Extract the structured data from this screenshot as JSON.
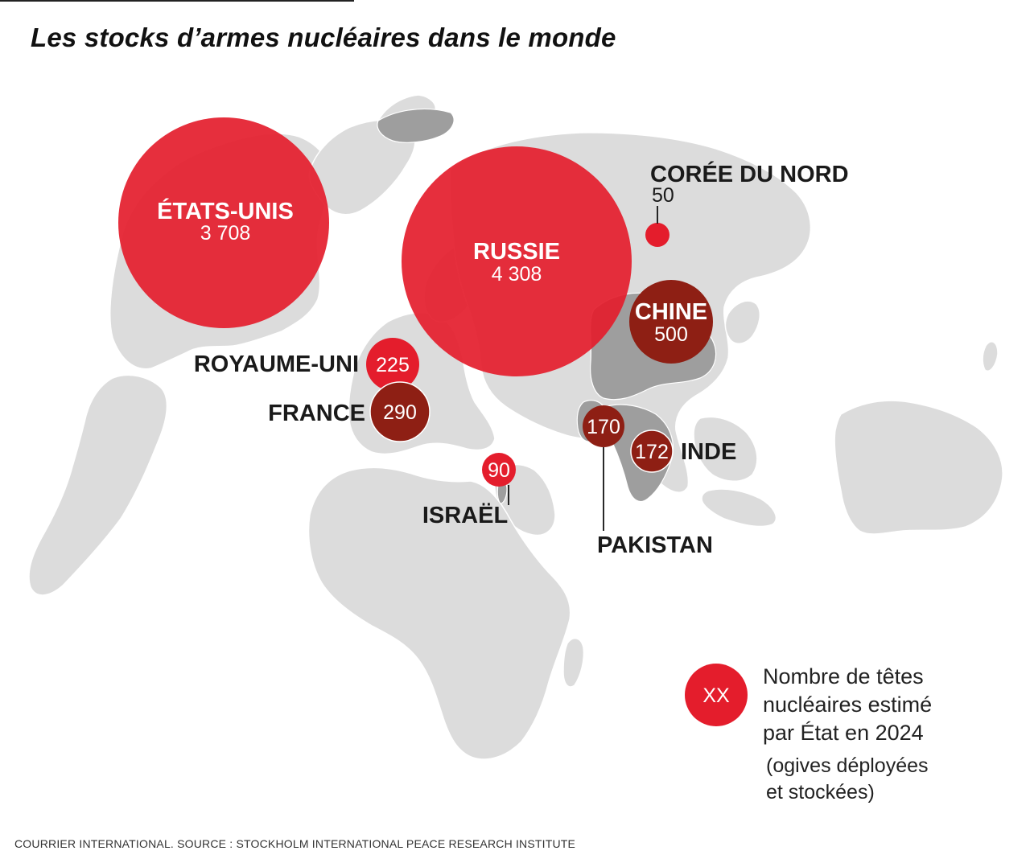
{
  "title": "Les stocks d’armes nucléaires dans le monde",
  "colors": {
    "land": "#dcdcdc",
    "nuclear_land": "#9e9e9e",
    "bubble": "#e41d2c",
    "bubble_dark": "#8e1f14",
    "border": "#ffffff"
  },
  "countries": [
    {
      "id": "etats-unis",
      "name": "ÉTATS-UNIS",
      "value_label": "3 708",
      "value": 3708
    },
    {
      "id": "russie",
      "name": "RUSSIE",
      "value_label": "4 308",
      "value": 4308
    },
    {
      "id": "coree-du-nord",
      "name": "CORÉE DU NORD",
      "value_label": "50",
      "value": 50
    },
    {
      "id": "chine",
      "name": "CHINE",
      "value_label": "500",
      "value": 500
    },
    {
      "id": "royaume-uni",
      "name": "ROYAUME-UNI",
      "value_label": "225",
      "value": 225
    },
    {
      "id": "france",
      "name": "FRANCE",
      "value_label": "290",
      "value": 290
    },
    {
      "id": "pakistan",
      "name": "PAKISTAN",
      "value_label": "170",
      "value": 170
    },
    {
      "id": "inde",
      "name": "INDE",
      "value_label": "172",
      "value": 172
    },
    {
      "id": "israel",
      "name": "ISRAËL",
      "value_label": "90",
      "value": 90
    }
  ],
  "legend": {
    "symbol": "XX",
    "text_lines": [
      "Nombre de têtes",
      "nucléaires estimé",
      "par État en 2024"
    ],
    "sub_lines": [
      "(ogives déployées",
      "et stockées)"
    ]
  },
  "source": "COURRIER INTERNATIONAL. SOURCE : STOCKHOLM INTERNATIONAL PEACE RESEARCH INSTITUTE"
}
